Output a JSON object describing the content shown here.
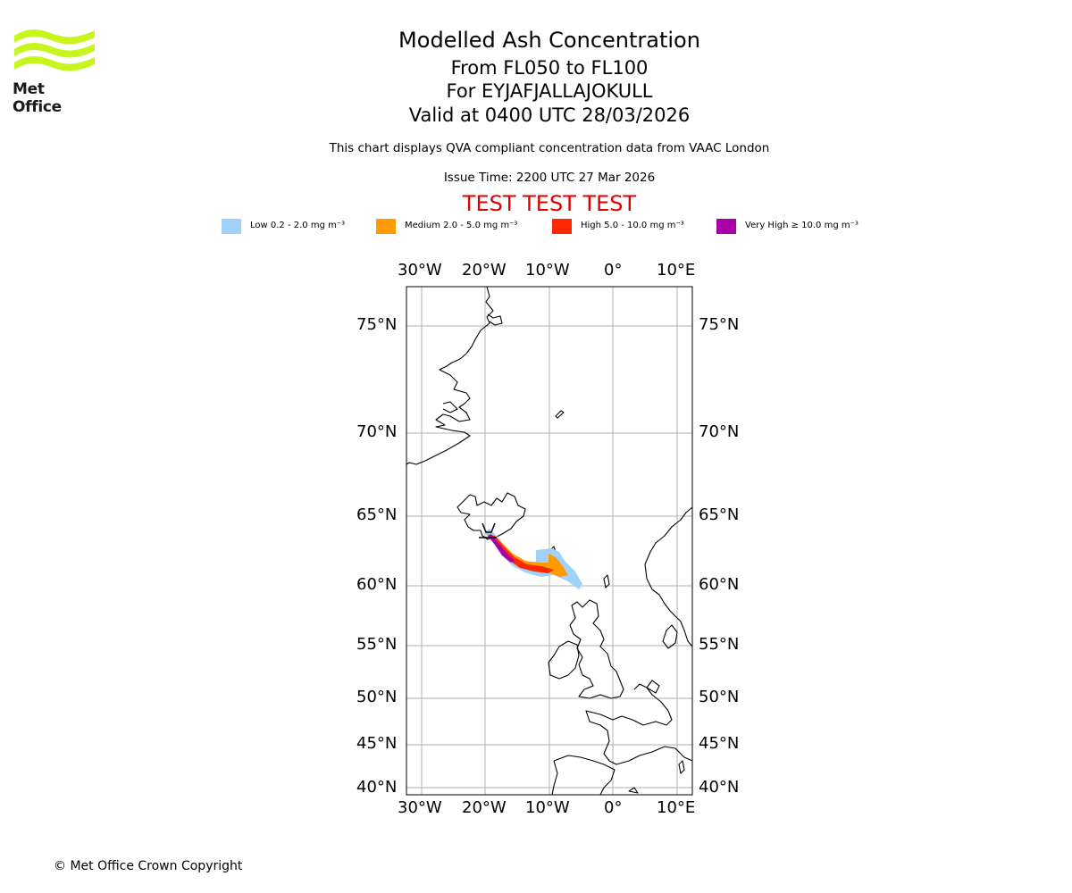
{
  "logo": {
    "name": "Met Office",
    "color": "#c8f51e"
  },
  "titles": {
    "main": "Modelled Ash Concentration",
    "levels": "From FL050 to FL100",
    "volcano": "For EYJAFJALLAJOKULL",
    "valid": "Valid at 0400 UTC 28/03/2026",
    "subtitle": "This chart displays QVA compliant concentration data from VAAC London",
    "issue": "Issue Time: 2200 UTC 27 Mar 2026",
    "test": "TEST TEST TEST"
  },
  "legend": [
    {
      "label": "Low 0.2 - 2.0 mg m⁻³",
      "color": "#a0d2fa"
    },
    {
      "label": "Medium 2.0 - 5.0 mg m⁻³",
      "color": "#ff9a00"
    },
    {
      "label": "High 5.0 - 10.0 mg m⁻³",
      "color": "#ff2800"
    },
    {
      "label": "Very High ≥ 10.0 mg m⁻³",
      "color": "#aa00aa"
    }
  ],
  "axes": {
    "lon_ticks": [
      "30°W",
      "20°W",
      "10°W",
      "0°",
      "10°E"
    ],
    "lat_ticks": [
      "75°N",
      "70°N",
      "65°N",
      "60°N",
      "55°N",
      "50°N",
      "45°N",
      "40°N"
    ]
  },
  "footer": {
    "copyright": "© Met Office Crown Copyright"
  }
}
